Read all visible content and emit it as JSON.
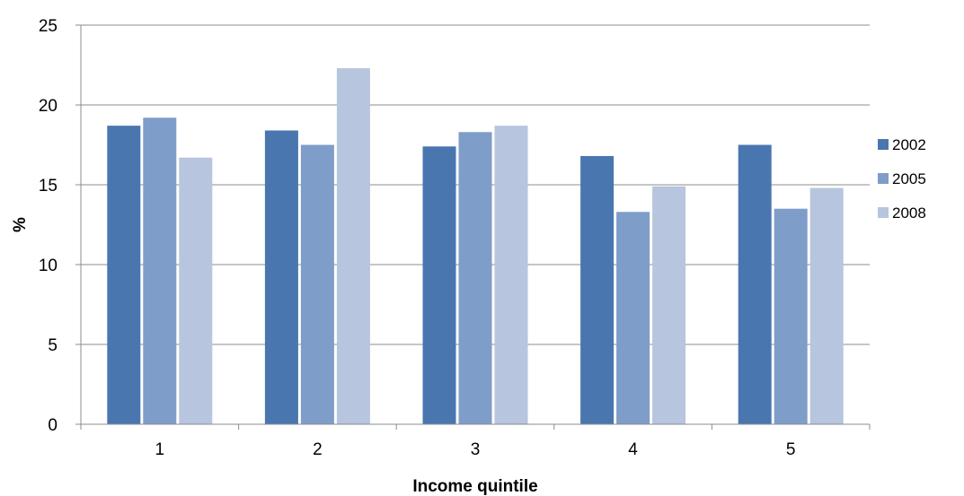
{
  "chart_data": {
    "type": "bar",
    "title": "",
    "xlabel": "Income quintile",
    "ylabel": "%",
    "categories": [
      "1",
      "2",
      "3",
      "4",
      "5"
    ],
    "series": [
      {
        "name": "2002",
        "color": "#4a76b0",
        "values": [
          18.7,
          18.4,
          17.4,
          16.8,
          17.5
        ]
      },
      {
        "name": "2005",
        "color": "#7f9dc9",
        "values": [
          19.2,
          17.5,
          18.3,
          13.3,
          13.5
        ]
      },
      {
        "name": "2008",
        "color": "#b7c5de",
        "values": [
          16.7,
          22.3,
          18.7,
          14.9,
          14.8
        ]
      }
    ],
    "ylim": [
      0,
      25
    ],
    "yticks": [
      "0",
      "5",
      "10",
      "15",
      "20",
      "25"
    ],
    "grid": true,
    "legend": "right"
  }
}
